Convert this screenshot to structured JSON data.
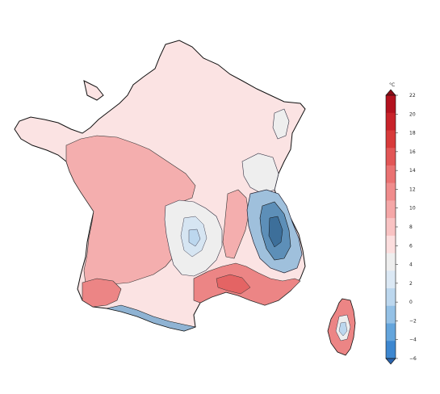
{
  "map": {
    "unit_label": "°C",
    "colorbar": {
      "ticks": [
        "22",
        "20",
        "18",
        "16",
        "14",
        "12",
        "10",
        "8",
        "6",
        "4",
        "2",
        "0",
        "−2",
        "−4",
        "−6"
      ],
      "bands": [
        "#b3121f",
        "#c8232a",
        "#d83a3a",
        "#e25656",
        "#ea7272",
        "#f08c8c",
        "#f5a7a7",
        "#f9c3c3",
        "#fcdede",
        "#eeeeee",
        "#dbe8f4",
        "#bcd7ee",
        "#94c1e6",
        "#64a5dc",
        "#3d87d0"
      ],
      "top_arrow_color": "#8b0d16",
      "bottom_arrow_color": "#2a63ad"
    },
    "region_colors": {
      "cool_light": "#fbe3e3",
      "mild": "#f8c7c7",
      "warm": "#f4aeae",
      "hot": "#ec8585",
      "very_hot": "#e46464",
      "neutral": "#eeeeee",
      "cold": "#bcd7ee",
      "very_cold": "#5d8fb8"
    }
  }
}
